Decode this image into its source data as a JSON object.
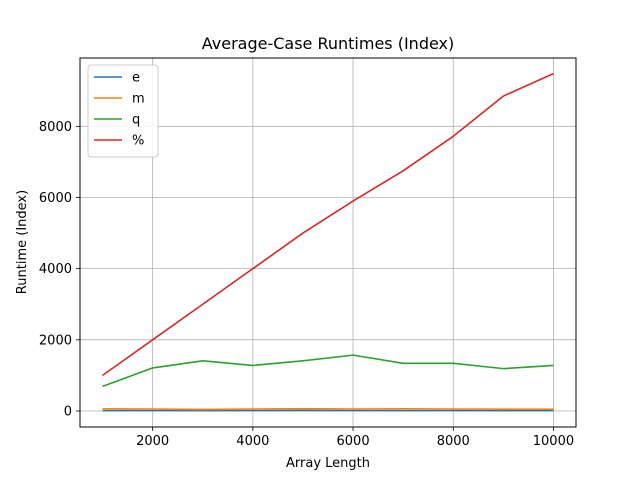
{
  "chart_data": {
    "type": "line",
    "title": "Average-Case Runtimes (Index)",
    "xlabel": "Array Length",
    "ylabel": "Runtime (Index)",
    "x": [
      1000,
      2000,
      3000,
      4000,
      5000,
      6000,
      7000,
      8000,
      9000,
      10000
    ],
    "xlim": [
      550,
      10450
    ],
    "ylim": [
      -450,
      9920
    ],
    "xticks": [
      2000,
      4000,
      6000,
      8000,
      10000
    ],
    "yticks": [
      0,
      2000,
      4000,
      6000,
      8000
    ],
    "grid": true,
    "legend_position": "top-left",
    "series": [
      {
        "name": "e",
        "color": "#1f77b4",
        "values": [
          10,
          10,
          10,
          10,
          15,
          10,
          10,
          10,
          10,
          10
        ]
      },
      {
        "name": "m",
        "color": "#ff7f0e",
        "values": [
          60,
          55,
          45,
          55,
          65,
          55,
          60,
          55,
          50,
          50
        ]
      },
      {
        "name": "q",
        "color": "#2ca02c",
        "values": [
          690,
          1210,
          1410,
          1280,
          1410,
          1570,
          1340,
          1340,
          1190,
          1280
        ]
      },
      {
        "name": "%",
        "color": "#d62728",
        "values": [
          1000,
          2000,
          3000,
          4000,
          5000,
          5900,
          6750,
          7720,
          8850,
          9480
        ]
      }
    ]
  }
}
